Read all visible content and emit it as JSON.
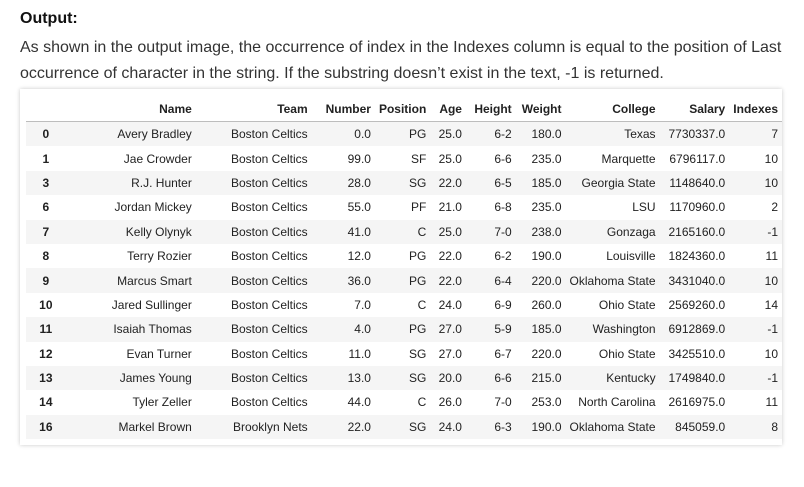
{
  "heading": "Output:",
  "paragraph": "As shown in the output image, the occurrence of index in the Indexes column is equal to the position of Last occurrence of character in the string. If the substring doesn’t exist in the text, -1 is returned.",
  "table": {
    "columns": [
      "",
      "Name",
      "Team",
      "Number",
      "Position",
      "Age",
      "Height",
      "Weight",
      "College",
      "Salary",
      "Indexes"
    ],
    "rows": [
      [
        "0",
        "Avery Bradley",
        "Boston Celtics",
        "0.0",
        "PG",
        "25.0",
        "6-2",
        "180.0",
        "Texas",
        "7730337.0",
        "7"
      ],
      [
        "1",
        "Jae Crowder",
        "Boston Celtics",
        "99.0",
        "SF",
        "25.0",
        "6-6",
        "235.0",
        "Marquette",
        "6796117.0",
        "10"
      ],
      [
        "3",
        "R.J. Hunter",
        "Boston Celtics",
        "28.0",
        "SG",
        "22.0",
        "6-5",
        "185.0",
        "Georgia State",
        "1148640.0",
        "10"
      ],
      [
        "6",
        "Jordan Mickey",
        "Boston Celtics",
        "55.0",
        "PF",
        "21.0",
        "6-8",
        "235.0",
        "LSU",
        "1170960.0",
        "2"
      ],
      [
        "7",
        "Kelly Olynyk",
        "Boston Celtics",
        "41.0",
        "C",
        "25.0",
        "7-0",
        "238.0",
        "Gonzaga",
        "2165160.0",
        "-1"
      ],
      [
        "8",
        "Terry Rozier",
        "Boston Celtics",
        "12.0",
        "PG",
        "22.0",
        "6-2",
        "190.0",
        "Louisville",
        "1824360.0",
        "11"
      ],
      [
        "9",
        "Marcus Smart",
        "Boston Celtics",
        "36.0",
        "PG",
        "22.0",
        "6-4",
        "220.0",
        "Oklahoma State",
        "3431040.0",
        "10"
      ],
      [
        "10",
        "Jared Sullinger",
        "Boston Celtics",
        "7.0",
        "C",
        "24.0",
        "6-9",
        "260.0",
        "Ohio State",
        "2569260.0",
        "14"
      ],
      [
        "11",
        "Isaiah Thomas",
        "Boston Celtics",
        "4.0",
        "PG",
        "27.0",
        "5-9",
        "185.0",
        "Washington",
        "6912869.0",
        "-1"
      ],
      [
        "12",
        "Evan Turner",
        "Boston Celtics",
        "11.0",
        "SG",
        "27.0",
        "6-7",
        "220.0",
        "Ohio State",
        "3425510.0",
        "10"
      ],
      [
        "13",
        "James Young",
        "Boston Celtics",
        "13.0",
        "SG",
        "20.0",
        "6-6",
        "215.0",
        "Kentucky",
        "1749840.0",
        "-1"
      ],
      [
        "14",
        "Tyler Zeller",
        "Boston Celtics",
        "44.0",
        "C",
        "26.0",
        "7-0",
        "253.0",
        "North Carolina",
        "2616975.0",
        "11"
      ],
      [
        "16",
        "Markel Brown",
        "Brooklyn Nets",
        "22.0",
        "SG",
        "24.0",
        "6-3",
        "190.0",
        "Oklahoma State",
        "845059.0",
        "8"
      ]
    ]
  }
}
